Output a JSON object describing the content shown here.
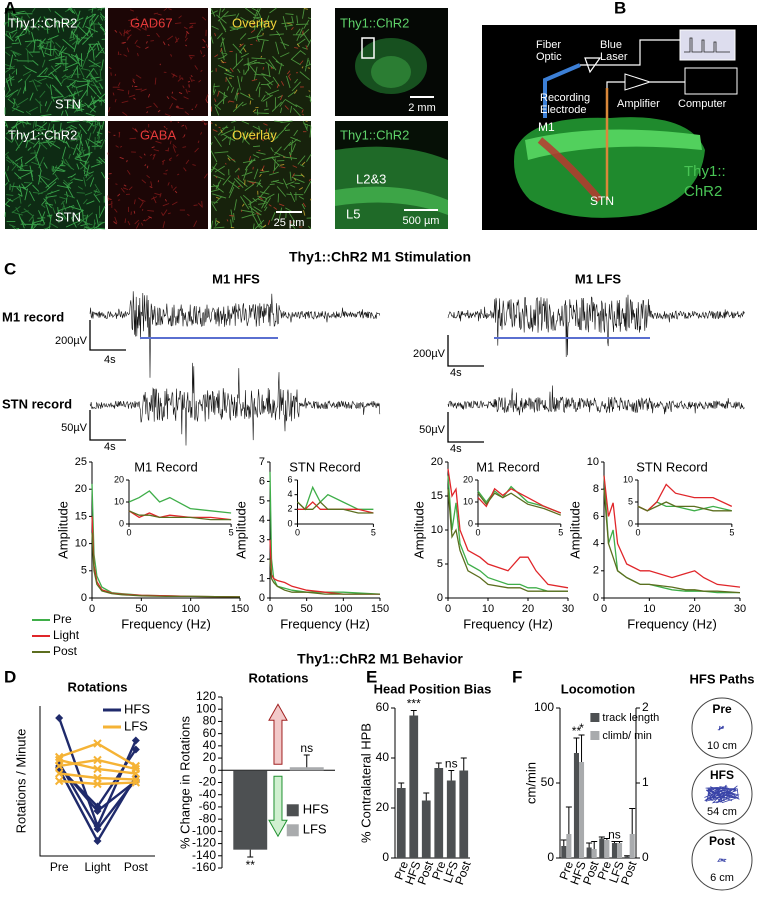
{
  "panel_a": {
    "label": "A",
    "row1": {
      "channel": "Thy1::ChR2",
      "region": "STN",
      "stain": "GAD67",
      "overlay": "Overlay"
    },
    "row2": {
      "channel": "Thy1::ChR2",
      "region": "STN",
      "stain": "GABA",
      "overlay": "Overlay",
      "scale": "25 µm"
    },
    "slice": {
      "channel": "Thy1::ChR2",
      "scale": "2 mm"
    },
    "cortex": {
      "channel": "Thy1::ChR2",
      "upper_layer": "L2&3",
      "lower_layer": "L5",
      "scale": "500 µm"
    }
  },
  "panel_b": {
    "label": "B",
    "fiber": [
      "Fiber",
      "Optic"
    ],
    "laser": [
      "Blue",
      "Laser"
    ],
    "electrode": [
      "Recording",
      "Electrode"
    ],
    "amplifier": "Amplifier",
    "computer": "Computer",
    "m1": "M1",
    "stn": "STN",
    "line": [
      "Thy1::",
      "ChR2"
    ]
  },
  "panel_c": {
    "label": "C",
    "title": "Thy1::ChR2 M1 Stimulation",
    "hfs": "M1 HFS",
    "lfs": "M1 LFS",
    "m1_record": "M1 record",
    "stn_record": "STN record",
    "scalebars": {
      "hfs_m1": [
        "200µV",
        "4s"
      ],
      "hfs_stn": [
        "50µV",
        "4s"
      ],
      "lfs_m1": [
        "200µV",
        "4s"
      ],
      "lfs_stn": [
        "50µV",
        "4s"
      ]
    }
  },
  "panel_d": {
    "label": "D",
    "title": "Thy1::ChR2 M1 Behavior"
  },
  "panel_e": {
    "label": "E"
  },
  "panel_f": {
    "label": "F",
    "paths_title": "HFS Paths",
    "paths": [
      {
        "phase": "Pre",
        "distance": "10 cm"
      },
      {
        "phase": "HFS",
        "distance": "54 cm"
      },
      {
        "phase": "Post",
        "distance": "6 cm"
      }
    ]
  },
  "chart_data": [
    {
      "type": "line",
      "title": "M1 Record",
      "xlabel": "Frequency (Hz)",
      "ylabel": "Amplitude",
      "x": [
        0,
        2,
        5,
        10,
        20,
        30,
        50,
        75,
        100,
        150
      ],
      "xlim": [
        0,
        150
      ],
      "xticks": [
        0,
        50,
        100,
        150
      ],
      "ylim": [
        0,
        25
      ],
      "yticks": [
        0,
        5,
        10,
        15,
        20,
        25
      ],
      "series": [
        {
          "name": "Pre",
          "color": "#3fae49",
          "values": [
            21,
            8,
            4,
            2,
            1,
            0.8,
            0.5,
            0.4,
            0.3,
            0.2
          ]
        },
        {
          "name": "Light",
          "color": "#e0262a",
          "values": [
            15,
            6,
            3,
            1.5,
            0.9,
            0.7,
            0.5,
            0.4,
            0.3,
            0.2
          ]
        },
        {
          "name": "Post",
          "color": "#5c6e1f",
          "values": [
            12,
            5,
            2.5,
            1.3,
            0.8,
            0.6,
            0.4,
            0.3,
            0.3,
            0.2
          ]
        }
      ],
      "inset": {
        "x": [
          0,
          0.5,
          1,
          1.5,
          2,
          3,
          4,
          5
        ],
        "xlim": [
          0,
          5
        ],
        "xticks": [
          0,
          5
        ],
        "ylim": [
          0,
          20
        ],
        "yticks": [
          0,
          10,
          20
        ],
        "series": [
          {
            "color": "#3fae49",
            "values": [
              10,
              12,
              15,
              10,
              12,
              7,
              6,
              5
            ]
          },
          {
            "color": "#e0262a",
            "values": [
              6,
              3,
              5,
              3,
              4,
              3,
              3,
              2
            ]
          },
          {
            "color": "#5c6e1f",
            "values": [
              6,
              4,
              4,
              3,
              3,
              3,
              2,
              2
            ]
          }
        ]
      }
    },
    {
      "type": "line",
      "title": "STN Record",
      "xlabel": "Frequency (Hz)",
      "ylabel": "Amplitude",
      "x": [
        0,
        2,
        5,
        10,
        20,
        30,
        50,
        75,
        100,
        150
      ],
      "xlim": [
        0,
        150
      ],
      "xticks": [
        0,
        50,
        100,
        150
      ],
      "ylim": [
        0,
        7
      ],
      "yticks": [
        0,
        1,
        2,
        3,
        4,
        5,
        6,
        7
      ],
      "series": [
        {
          "color": "#3fae49",
          "values": [
            6.5,
            2,
            1,
            0.6,
            0.5,
            0.4,
            0.3,
            0.3,
            0.3,
            0.2
          ]
        },
        {
          "color": "#e0262a",
          "values": [
            3,
            1.2,
            1,
            0.9,
            0.8,
            0.6,
            0.4,
            0.3,
            0.2,
            0.2
          ]
        },
        {
          "color": "#5c6e1f",
          "values": [
            2,
            1,
            0.8,
            0.6,
            0.4,
            0.3,
            0.3,
            0.2,
            0.2,
            0.2
          ]
        }
      ],
      "inset": {
        "x": [
          0,
          0.5,
          1,
          1.5,
          2,
          3,
          4,
          5
        ],
        "xlim": [
          0,
          5
        ],
        "xticks": [
          0,
          5
        ],
        "ylim": [
          0,
          6
        ],
        "yticks": [
          0,
          2,
          4,
          6
        ],
        "series": [
          {
            "color": "#3fae49",
            "values": [
              3,
              2,
              5,
              3,
              4,
              3,
              2,
              2
            ]
          },
          {
            "color": "#e0262a",
            "values": [
              2,
              2,
              3,
              2,
              2,
              2,
              2,
              1.5
            ]
          },
          {
            "color": "#5c6e1f",
            "values": [
              3,
              2,
              2,
              3,
              2,
              2,
              1.5,
              1.5
            ]
          }
        ]
      }
    },
    {
      "type": "line",
      "title": "M1 Record",
      "xlabel": "Frequency (Hz)",
      "ylabel": "Amplitude",
      "x": [
        0,
        1,
        2,
        3,
        5,
        8,
        10,
        15,
        18,
        20,
        22,
        25,
        30
      ],
      "xlim": [
        0,
        30
      ],
      "xticks": [
        0,
        10,
        20,
        30
      ],
      "ylim": [
        0,
        20
      ],
      "yticks": [
        0,
        5,
        10,
        15,
        20
      ],
      "series": [
        {
          "color": "#3fae49",
          "values": [
            18,
            10,
            14,
            8,
            5,
            4,
            3,
            2,
            2,
            1.5,
            1.5,
            1,
            1
          ]
        },
        {
          "color": "#e0262a",
          "values": [
            19,
            15,
            16,
            10,
            7,
            6,
            5,
            4,
            6,
            6,
            4,
            2,
            1.5
          ]
        },
        {
          "color": "#5c6e1f",
          "values": [
            16,
            9,
            10,
            7,
            4,
            3,
            2,
            1.5,
            1.5,
            1,
            1,
            1,
            1
          ]
        }
      ],
      "inset": {
        "x": [
          0,
          0.5,
          1,
          1.5,
          2,
          3,
          4,
          5
        ],
        "xlim": [
          0,
          5
        ],
        "xticks": [
          0,
          5
        ],
        "ylim": [
          0,
          20
        ],
        "yticks": [
          0,
          10,
          20
        ],
        "series": [
          {
            "color": "#3fae49",
            "values": [
              15,
              10,
              15,
              12,
              17,
              10,
              8,
              5
            ]
          },
          {
            "color": "#e0262a",
            "values": [
              12,
              8,
              16,
              13,
              16,
              12,
              8,
              5
            ]
          },
          {
            "color": "#5c6e1f",
            "values": [
              14,
              9,
              14,
              12,
              14,
              9,
              7,
              4
            ]
          }
        ]
      }
    },
    {
      "type": "line",
      "title": "STN Record",
      "xlabel": "Frequency (Hz)",
      "ylabel": "Amplitude",
      "x": [
        0,
        1,
        2,
        3,
        5,
        8,
        10,
        15,
        18,
        20,
        22,
        25,
        30
      ],
      "xlim": [
        0,
        30
      ],
      "xticks": [
        0,
        10,
        20,
        30
      ],
      "ylim": [
        0,
        10
      ],
      "yticks": [
        0,
        2,
        4,
        6,
        8,
        10
      ],
      "series": [
        {
          "color": "#3fae49",
          "values": [
            9,
            4,
            5,
            2,
            1.5,
            1,
            1,
            0.6,
            0.5,
            0.5,
            0.5,
            0.4,
            0.4
          ]
        },
        {
          "color": "#e0262a",
          "values": [
            9,
            6,
            7,
            4,
            2.5,
            2,
            2,
            1.5,
            1.8,
            2,
            1.5,
            1,
            0.8
          ]
        },
        {
          "color": "#5c6e1f",
          "values": [
            8,
            4,
            3,
            2,
            1.5,
            1,
            1,
            0.8,
            0.6,
            0.6,
            0.5,
            0.5,
            0.4
          ]
        }
      ],
      "inset": {
        "x": [
          0,
          0.5,
          1,
          1.5,
          2,
          3,
          4,
          5
        ],
        "xlim": [
          0,
          5
        ],
        "xticks": [
          0,
          5
        ],
        "ylim": [
          0,
          10
        ],
        "yticks": [
          0,
          5,
          10
        ],
        "series": [
          {
            "color": "#3fae49",
            "values": [
              4,
              3,
              5,
              4,
              4,
              3,
              4,
              3
            ]
          },
          {
            "color": "#e0262a",
            "values": [
              4,
              3,
              5,
              9,
              7,
              6,
              6,
              4
            ]
          },
          {
            "color": "#5c6e1f",
            "values": [
              4,
              3,
              4,
              5,
              4,
              4,
              3,
              3
            ]
          }
        ]
      }
    },
    {
      "type": "lines",
      "title": "Rotations",
      "ylabel": "Rotations / Minute",
      "categories": [
        "Pre",
        "Light",
        "Post"
      ],
      "ylim": [
        -3,
        7
      ],
      "groups": [
        {
          "name": "HFS",
          "color": "#1f2a6b",
          "lines": [
            [
              6.2,
              -1,
              4.7
            ],
            [
              3,
              0,
              2
            ],
            [
              2.8,
              -2,
              2.3
            ],
            [
              3.2,
              -1.2,
              2.1
            ],
            [
              2.9,
              0.3,
              4.1
            ]
          ]
        },
        {
          "name": "LFS",
          "color": "#f5b335",
          "lines": [
            [
              3.6,
              4.5,
              3
            ],
            [
              3.4,
              2.8,
              2.5
            ],
            [
              2.5,
              2.2,
              2.1
            ],
            [
              2,
              1.8,
              1.9
            ],
            [
              3,
              3.4,
              2.8
            ]
          ]
        }
      ]
    },
    {
      "type": "bar",
      "title": "Rotations",
      "ylabel": "% Change in Rotations",
      "categories": [
        "HFS",
        "LFS"
      ],
      "values": [
        -130,
        5
      ],
      "errors": [
        12,
        20
      ],
      "colors": [
        "#4d5052",
        "#a9abad"
      ],
      "annotations": [
        "**",
        "ns"
      ],
      "ylim": [
        -160,
        120
      ],
      "yticks": [
        -160,
        -140,
        -120,
        -100,
        -80,
        -60,
        -40,
        -20,
        0,
        20,
        40,
        60,
        80,
        100,
        120
      ]
    },
    {
      "type": "bar",
      "title": "Head Position Bias",
      "ylabel": "% Contralateral HPB",
      "categories": [
        "Pre",
        "HFS",
        "Post",
        "Pre",
        "LFS",
        "Post"
      ],
      "values": [
        28,
        57,
        23,
        36,
        31,
        35
      ],
      "errors": [
        2,
        2,
        3,
        2,
        4,
        5
      ],
      "color": "#4d5052",
      "annotations": [
        null,
        "***",
        null,
        null,
        "ns",
        null
      ],
      "ylim": [
        0,
        60
      ],
      "yticks": [
        0,
        20,
        40,
        60
      ]
    },
    {
      "type": "bar",
      "title": "Locomotion",
      "ylabel": "cm/min",
      "categories": [
        "Pre",
        "HFS",
        "Post",
        "Pre",
        "LFS",
        "Post"
      ],
      "ylim": [
        0,
        100
      ],
      "yticks": [
        0,
        50,
        100
      ],
      "y2lim": [
        0,
        2
      ],
      "y2ticks": [
        0,
        1,
        2
      ],
      "series": [
        {
          "name": "track length",
          "color": "#4d5052",
          "values": [
            8,
            70,
            7,
            13,
            10,
            1
          ],
          "errors": [
            4,
            10,
            3,
            1,
            1,
            0.5
          ],
          "annotations": [
            null,
            "**",
            null,
            null,
            "ns",
            null
          ]
        },
        {
          "name": "climb/ min",
          "color": "#a9abad",
          "axis": "y2",
          "values": [
            0.32,
            1.28,
            0.12,
            0.24,
            0.2,
            0.32
          ],
          "errors": [
            0.36,
            0.36,
            0.1,
            0.02,
            0.02,
            0.34
          ],
          "annotations": [
            null,
            "*",
            null,
            null,
            null,
            null
          ]
        }
      ]
    }
  ]
}
